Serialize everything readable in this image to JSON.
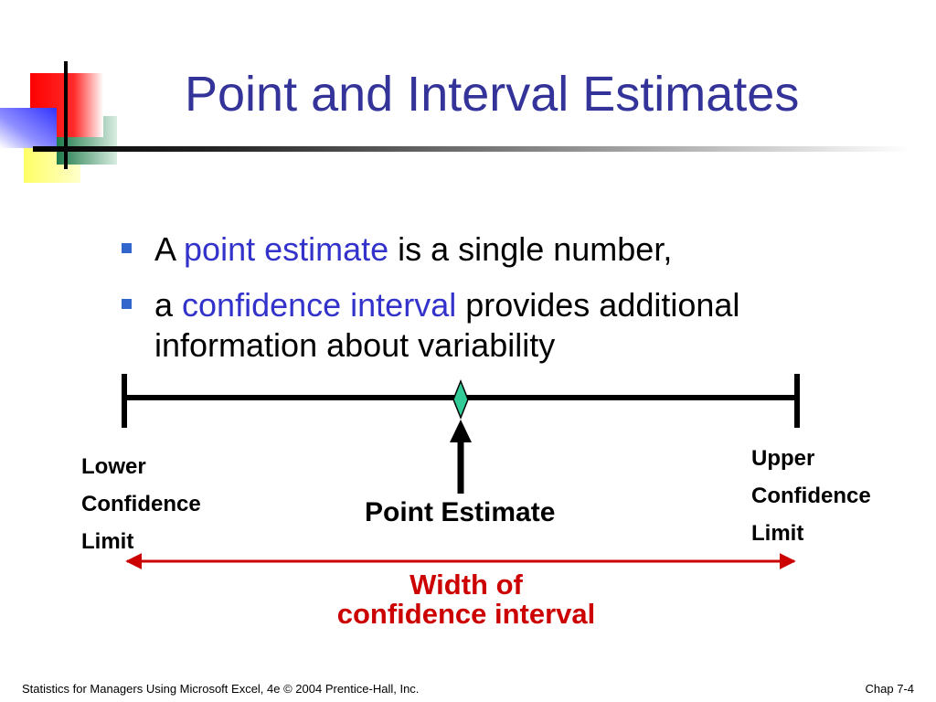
{
  "title": "Point and Interval Estimates",
  "bullets": [
    {
      "pre": "A ",
      "highlight": "point estimate",
      "post": " is a single number,"
    },
    {
      "pre": "a ",
      "highlight": "confidence interval",
      "post": " provides additional",
      "continuation": "information about variability"
    }
  ],
  "diagram": {
    "lower_label": [
      "Lower",
      "Confidence",
      "Limit"
    ],
    "upper_label": [
      "Upper",
      "Confidence",
      "Limit"
    ],
    "point_label": "Point Estimate",
    "width_label": [
      "Width of",
      "confidence interval"
    ]
  },
  "footer": {
    "left": "Statistics for Managers Using Microsoft Excel, 4e © 2004 Prentice-Hall, Inc.",
    "right": "Chap 7-4"
  },
  "colors": {
    "title": "#333399",
    "highlight": "#3333cc",
    "bullet_mark": "#3366cc",
    "diamond": "#33cc99",
    "width_arrow": "#cc0000"
  }
}
